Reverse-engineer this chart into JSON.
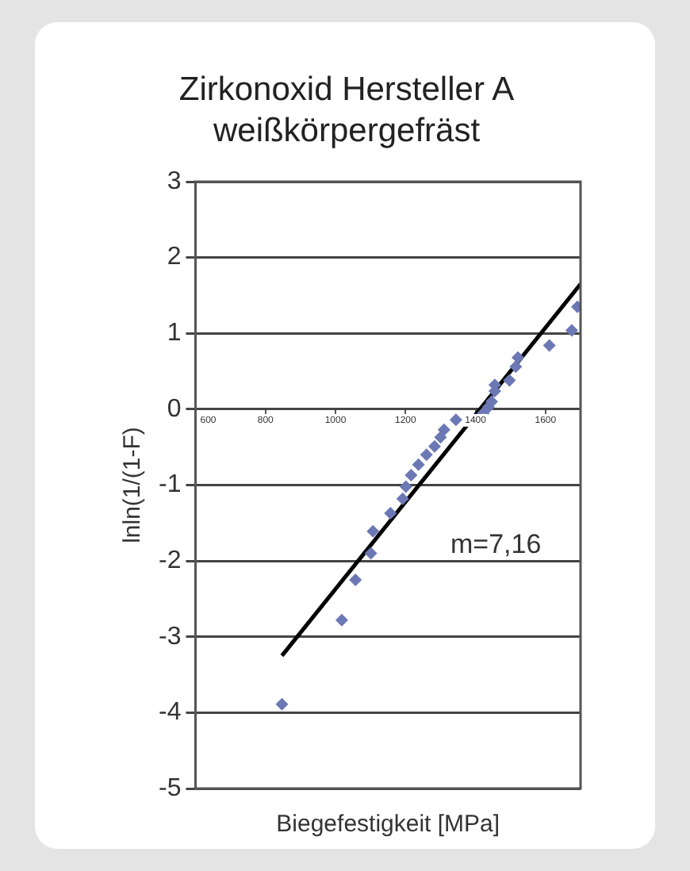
{
  "chart_data": {
    "type": "scatter",
    "title": "Zirkonoxid Hersteller A\nweißkörpergefräst",
    "xlabel": "Biegefestigkeit [MPa]",
    "ylabel": "lnln(1/(1-F)",
    "grid": "y",
    "xlim": [
      600,
      1700
    ],
    "xticks": [
      600,
      800,
      1000,
      1200,
      1400,
      1600
    ],
    "ylim": [
      -5,
      3
    ],
    "yticks": [
      -5,
      -4,
      -3,
      -2,
      -1,
      0,
      1,
      2,
      3
    ],
    "series": [
      {
        "type": "scatter",
        "color": "#6b78b4",
        "marker": "diamond",
        "x": [
          847,
          1018,
          1057,
          1101,
          1107,
          1157,
          1192,
          1201,
          1216,
          1237,
          1260,
          1283,
          1300,
          1310,
          1344,
          1422,
          1437,
          1446,
          1455,
          1455,
          1497,
          1515,
          1521,
          1611,
          1675,
          1691
        ],
        "values": [
          -3.89,
          -2.78,
          -2.25,
          -1.9,
          -1.61,
          -1.37,
          -1.18,
          -1.02,
          -0.87,
          -0.73,
          -0.6,
          -0.49,
          -0.37,
          -0.27,
          -0.14,
          -0.05,
          0.03,
          0.1,
          0.24,
          0.32,
          0.38,
          0.56,
          0.68,
          0.84,
          1.04,
          1.35
        ]
      },
      {
        "type": "line",
        "color": "#000000",
        "x": [
          847,
          1700
        ],
        "values": [
          -3.25,
          1.65
        ]
      }
    ],
    "annotations": [
      "m=7,16"
    ]
  }
}
